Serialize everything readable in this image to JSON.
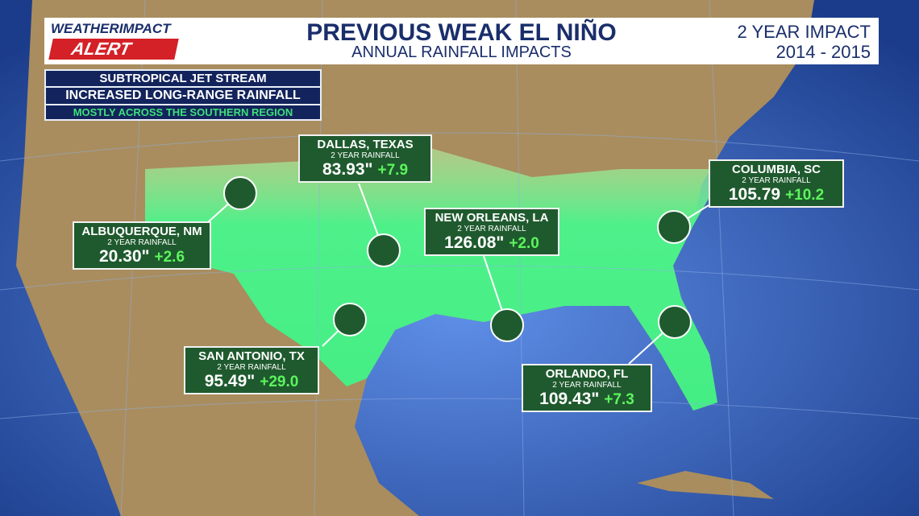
{
  "header": {
    "logo_weather": "WEATHER",
    "logo_impact": "IMPACT",
    "logo_alert": "ALERT",
    "title": "PREVIOUS WEAK EL NIÑO",
    "subtitle": "ANNUAL RAINFALL IMPACTS",
    "period_label": "2 YEAR IMPACT",
    "period": "2014 - 2015"
  },
  "info_box": {
    "line1": "SUBTROPICAL JET STREAM",
    "line2": "INCREASED LONG-RANGE RAINFALL",
    "line3": "MOSTLY ACROSS THE SOUTHERN REGION"
  },
  "cities": [
    {
      "name": "DALLAS, TEXAS",
      "sublabel": "2 YEAR RAINFALL",
      "rainfall": "83.93\"",
      "change": "+7.9"
    },
    {
      "name": "ALBUQUERQUE, NM",
      "sublabel": "2 YEAR RAINFALL",
      "rainfall": "20.30\"",
      "change": "+2.6"
    },
    {
      "name": "SAN ANTONIO, TX",
      "sublabel": "2 YEAR RAINFALL",
      "rainfall": "95.49\"",
      "change": "+29.0"
    },
    {
      "name": "NEW ORLEANS, LA",
      "sublabel": "2 YEAR RAINFALL",
      "rainfall": "126.08\"",
      "change": "+2.0"
    },
    {
      "name": "COLUMBIA, SC",
      "sublabel": "2 YEAR RAINFALL",
      "rainfall": "105.79",
      "change": "+10.2"
    },
    {
      "name": "ORLANDO, FL",
      "sublabel": "2 YEAR RAINFALL",
      "rainfall": "109.43\"",
      "change": "+7.3"
    }
  ]
}
